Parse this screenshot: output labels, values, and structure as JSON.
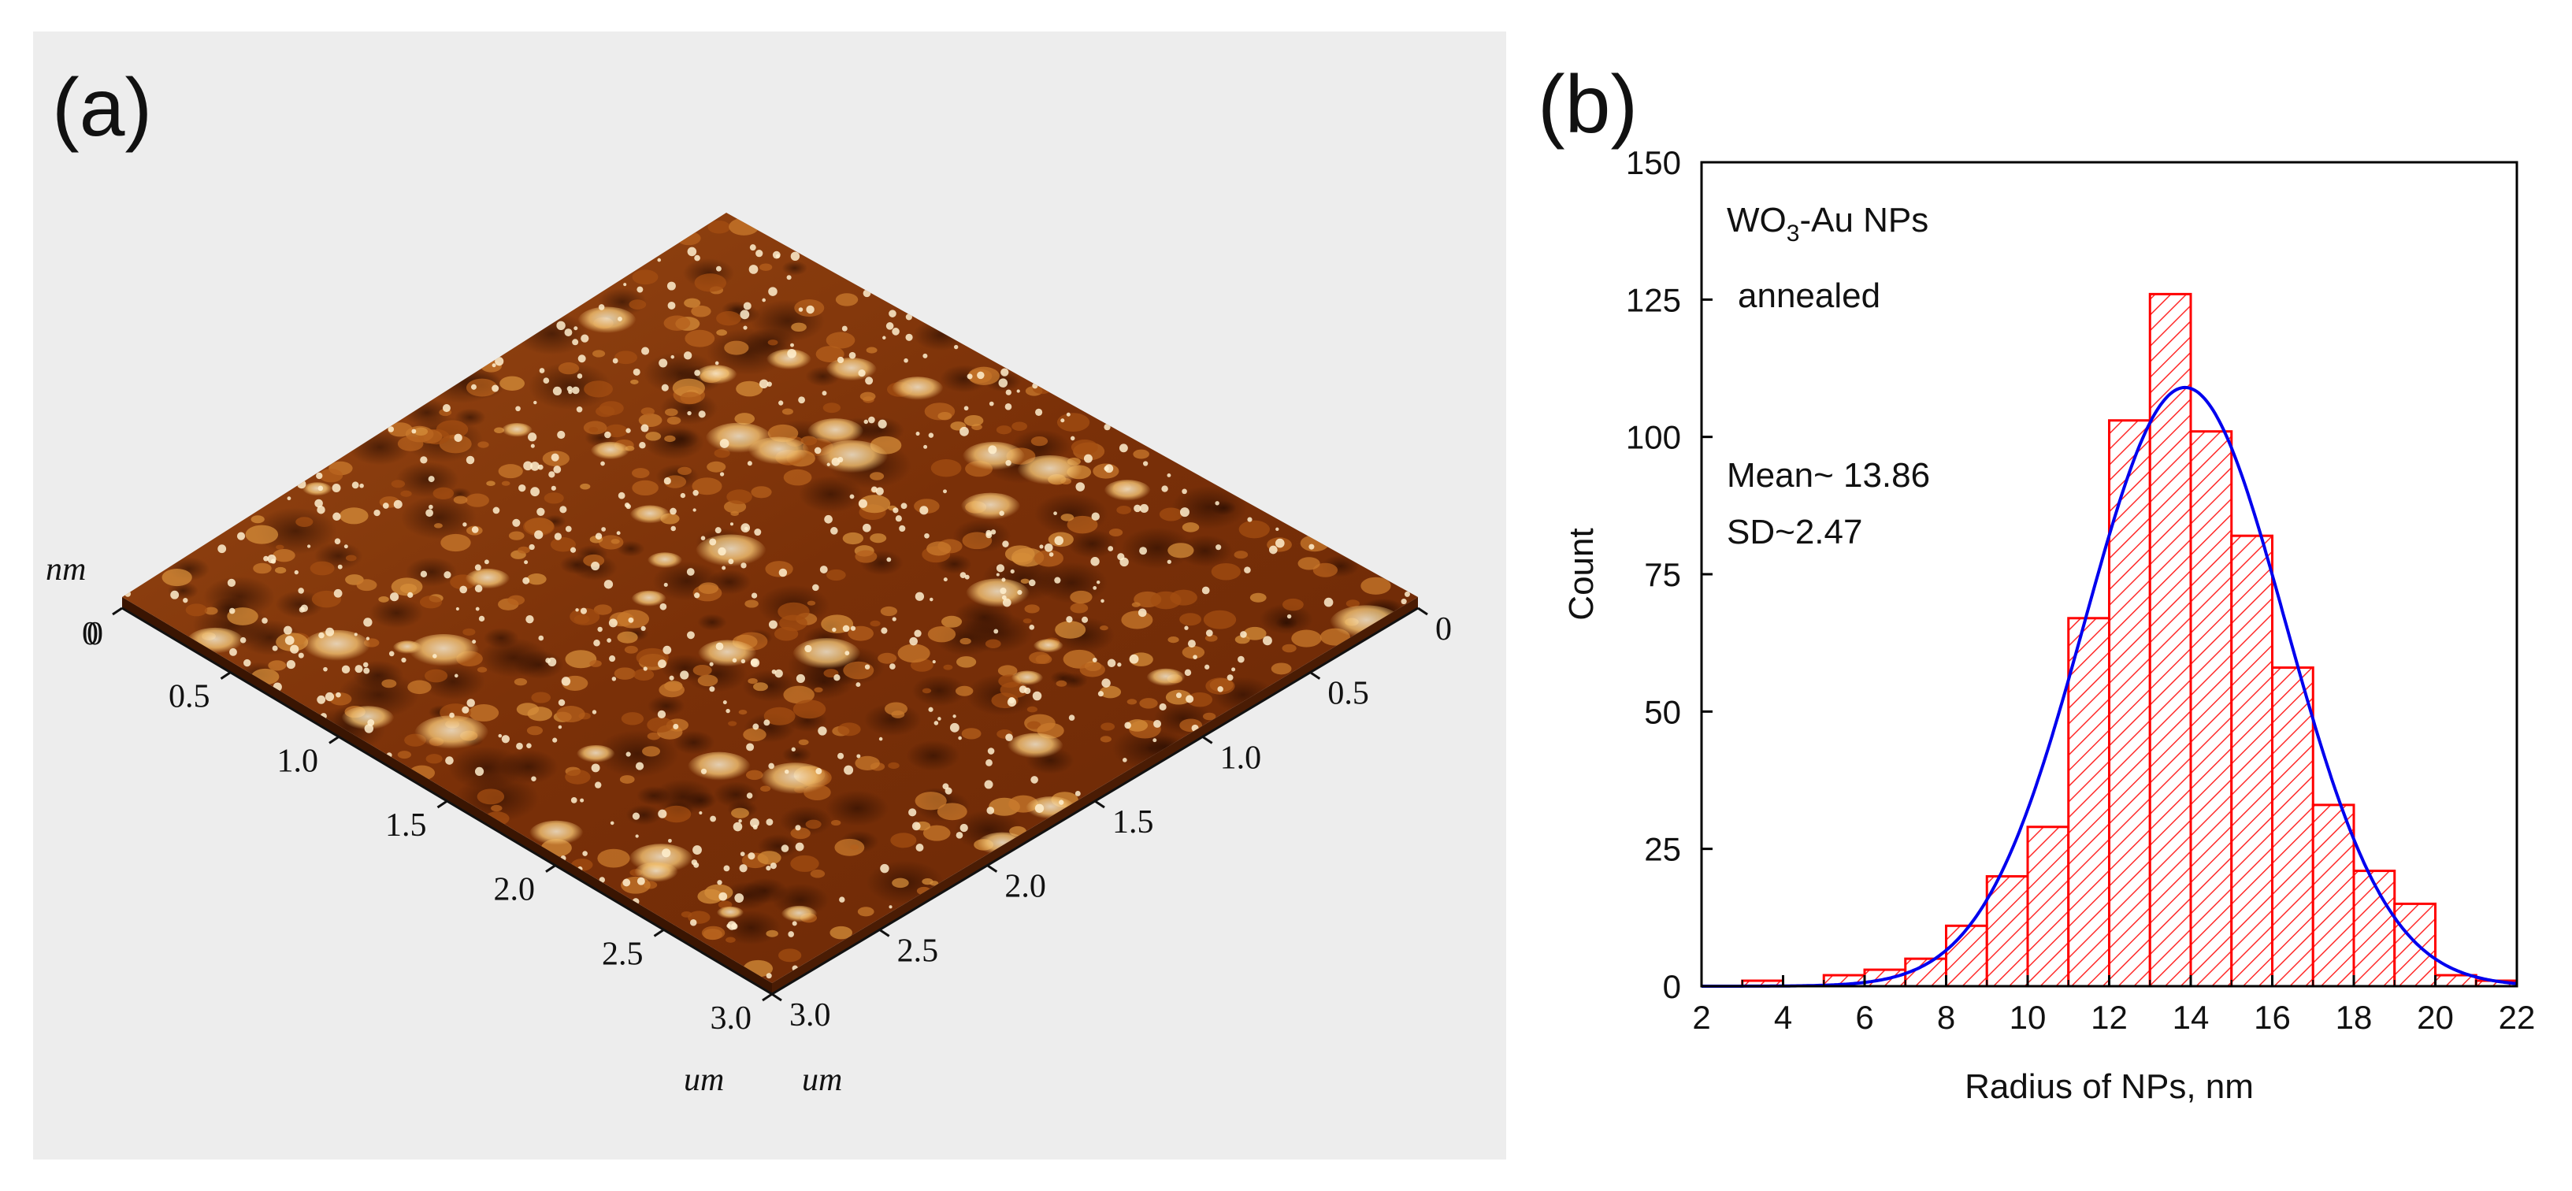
{
  "panel_a": {
    "label": "(a)",
    "z_unit": "nm",
    "z_tick": "0",
    "left_axis": {
      "ticks": [
        "0",
        "0.5",
        "1.0",
        "1.5",
        "2.0",
        "2.5",
        "3.0"
      ],
      "unit": "um"
    },
    "right_axis": {
      "ticks": [
        "0",
        "0.5",
        "1.0",
        "1.5",
        "2.0",
        "2.5",
        "3.0"
      ],
      "unit": "um"
    },
    "colors": {
      "panel_bg": "#ededed",
      "surface_dark": "#2a0d00",
      "surface_mid": "#8b3a0a",
      "surface_light": "#f3c77c"
    }
  },
  "chart_data": {
    "label": "(b)",
    "type": "bar",
    "title": "",
    "xlabel": "Radius of NPs, nm",
    "ylabel": "Count",
    "xlim": [
      2,
      22
    ],
    "ylim": [
      0,
      150
    ],
    "xticks": [
      2,
      4,
      6,
      8,
      10,
      12,
      14,
      16,
      18,
      20,
      22
    ],
    "yticks": [
      0,
      25,
      50,
      75,
      100,
      125,
      150
    ],
    "bin_width": 1,
    "bins": [
      3,
      4,
      5,
      6,
      7,
      8,
      9,
      10,
      11,
      12,
      13,
      14,
      15,
      16,
      17,
      18,
      19,
      20,
      21
    ],
    "values": [
      1,
      0,
      2,
      3,
      5,
      11,
      20,
      29,
      67,
      103,
      126,
      101,
      82,
      58,
      33,
      21,
      15,
      2,
      1
    ],
    "fit": {
      "type": "gaussian",
      "mean": 13.86,
      "sd": 2.47,
      "peak": 109
    },
    "annotations": {
      "line1_main": "WO",
      "line1_sub": "3",
      "line1_rest": "-Au NPs",
      "line2": "annealed",
      "line3": "Mean~ 13.86",
      "line4": "SD~2.47"
    },
    "colors": {
      "bar": "#ff0000",
      "fit": "#0000ee",
      "axis": "#000000"
    }
  }
}
